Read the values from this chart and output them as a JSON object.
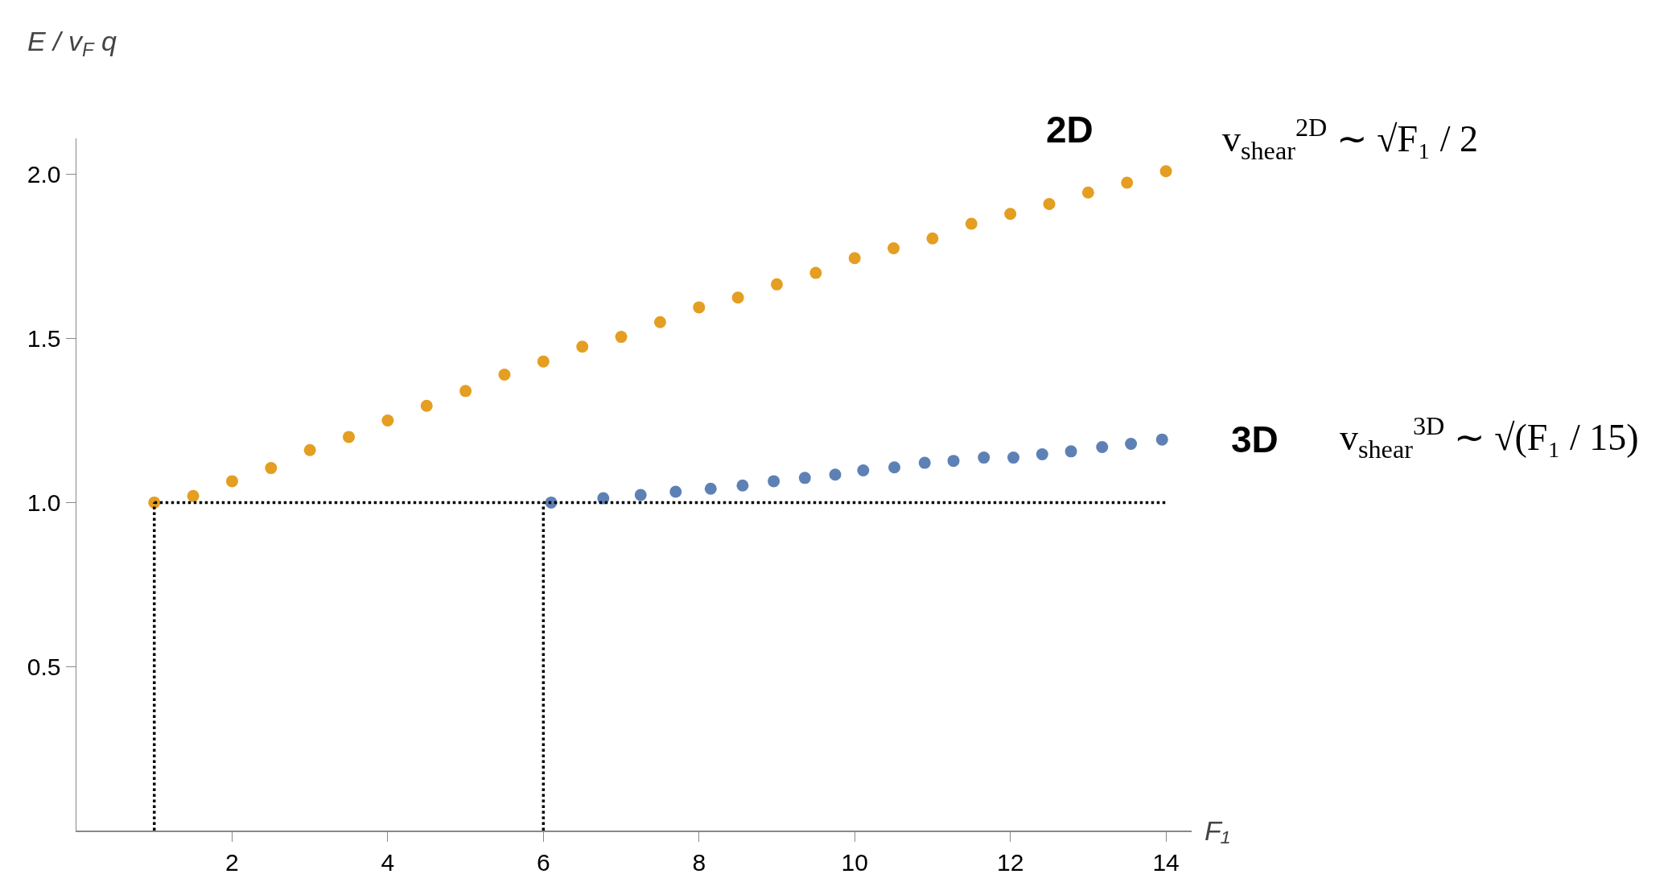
{
  "chart_data": {
    "type": "scatter",
    "xlabel": "F₁",
    "ylabel": "E / v$_{F}$ q",
    "xlim": [
      0,
      14.33
    ],
    "ylim": [
      0,
      2.11
    ],
    "xticks": [
      2,
      4,
      6,
      8,
      10,
      12,
      14
    ],
    "yticks": [
      0.5,
      {
        "value": 1,
        "label": "1.0"
      },
      1.5,
      {
        "value": 2,
        "label": "2.0"
      }
    ],
    "grid": false,
    "legend": false,
    "marker": "circle",
    "series": [
      {
        "name": "2D",
        "color": "#e49e21",
        "x": [
          1,
          1.5,
          2,
          2.5,
          3,
          3.5,
          4,
          4.5,
          5,
          5.5,
          6,
          6.5,
          7,
          7.5,
          8,
          8.5,
          9,
          9.5,
          10,
          10.5,
          11,
          11.5,
          12,
          12.5,
          13,
          13.5,
          14
        ],
        "values": [
          1.0,
          1.02,
          1.065,
          1.105,
          1.16,
          1.2,
          1.25,
          1.295,
          1.34,
          1.39,
          1.43,
          1.475,
          1.505,
          1.55,
          1.595,
          1.625,
          1.665,
          1.7,
          1.745,
          1.775,
          1.805,
          1.85,
          1.88,
          1.91,
          1.945,
          1.975,
          2.01
        ]
      },
      {
        "name": "3D",
        "color": "#5e81b5",
        "x": [
          6.1,
          6.77,
          7.25,
          7.7,
          8.15,
          8.56,
          8.96,
          9.36,
          9.75,
          10.11,
          10.51,
          10.9,
          11.27,
          11.66,
          12.04,
          12.41,
          12.78,
          13.18,
          13.55,
          13.95
        ],
        "values": [
          1.0,
          1.013,
          1.023,
          1.033,
          1.042,
          1.052,
          1.065,
          1.075,
          1.085,
          1.098,
          1.107,
          1.121,
          1.127,
          1.137,
          1.137,
          1.147,
          1.156,
          1.169,
          1.179,
          1.192
        ]
      },
      {
        "type": "line",
        "color": "#000000",
        "line_style": "dotted",
        "marker": "none",
        "x": [
          1,
          1
        ],
        "values": [
          0,
          1
        ]
      },
      {
        "type": "line",
        "color": "#000000",
        "line_style": "dotted",
        "marker": "none",
        "x": [
          6,
          6
        ],
        "values": [
          0,
          1
        ]
      },
      {
        "type": "line",
        "color": "#000000",
        "line_style": "dotted",
        "marker": "none",
        "x": [
          1,
          14
        ],
        "values": [
          1,
          1
        ]
      }
    ],
    "annotations": [
      "v$_{shear}$$^{2D}$ ∼ √F₁ / 2",
      "v$_{shear}$$^{3D}$ ∼ √(F₁ / 15)"
    ]
  }
}
